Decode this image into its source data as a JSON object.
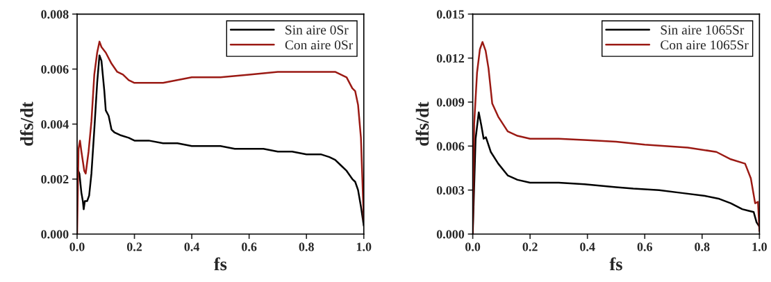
{
  "chart_data": [
    {
      "type": "line",
      "xlabel": "fs",
      "ylabel": "dfs/dt",
      "legend": "top right",
      "grid": false,
      "xlim": [
        0,
        1.0
      ],
      "xticks": [
        {
          "value": 0,
          "label": "0.0"
        },
        {
          "value": 0.2,
          "label": "0.2"
        },
        {
          "value": 0.4,
          "label": "0.4"
        },
        {
          "value": 0.6,
          "label": "0.6"
        },
        {
          "value": 0.8,
          "label": "0.8"
        },
        {
          "value": 1.0,
          "label": "1.0"
        }
      ],
      "ylim": [
        0,
        0.008
      ],
      "yticks": [
        {
          "value": 0,
          "label": "0.000"
        },
        {
          "value": 0.002,
          "label": "0.002"
        },
        {
          "value": 0.004,
          "label": "0.004"
        },
        {
          "value": 0.006,
          "label": "0.006"
        },
        {
          "value": 0.008,
          "label": "0.008"
        }
      ],
      "series": [
        {
          "name": "Sin aire 0Sr",
          "color": "#000000",
          "x": [
            0,
            0.008,
            0.015,
            0.02,
            0.023,
            0.027,
            0.035,
            0.042,
            0.05,
            0.06,
            0.07,
            0.078,
            0.085,
            0.095,
            0.1,
            0.11,
            0.12,
            0.13,
            0.15,
            0.18,
            0.2,
            0.25,
            0.3,
            0.35,
            0.4,
            0.45,
            0.5,
            0.55,
            0.6,
            0.65,
            0.7,
            0.75,
            0.8,
            0.85,
            0.88,
            0.9,
            0.92,
            0.94,
            0.96,
            0.97,
            0.98,
            0.99,
            1.0
          ],
          "values": [
            0.0024,
            0.0022,
            0.0015,
            0.0012,
            0.0009,
            0.0012,
            0.0012,
            0.0014,
            0.0022,
            0.0038,
            0.0055,
            0.0065,
            0.0063,
            0.0052,
            0.0045,
            0.0043,
            0.0038,
            0.0037,
            0.0036,
            0.0035,
            0.0034,
            0.0034,
            0.0033,
            0.0033,
            0.0032,
            0.0032,
            0.0032,
            0.0031,
            0.0031,
            0.0031,
            0.003,
            0.003,
            0.0029,
            0.0029,
            0.0028,
            0.0027,
            0.0025,
            0.0023,
            0.002,
            0.0019,
            0.0016,
            0.001,
            0.0003
          ]
        },
        {
          "name": "Con aire 0Sr",
          "color": "#9b1a14",
          "x": [
            0,
            0.005,
            0.01,
            0.015,
            0.025,
            0.03,
            0.04,
            0.05,
            0.06,
            0.07,
            0.078,
            0.085,
            0.1,
            0.12,
            0.14,
            0.16,
            0.18,
            0.2,
            0.25,
            0.3,
            0.35,
            0.4,
            0.5,
            0.6,
            0.7,
            0.8,
            0.85,
            0.9,
            0.92,
            0.94,
            0.96,
            0.97,
            0.98,
            0.99,
            1.0
          ],
          "values": [
            0,
            0.0031,
            0.0034,
            0.003,
            0.0023,
            0.0022,
            0.003,
            0.0041,
            0.0058,
            0.0066,
            0.007,
            0.0068,
            0.0066,
            0.0062,
            0.0059,
            0.0058,
            0.0056,
            0.0055,
            0.0055,
            0.0055,
            0.0056,
            0.0057,
            0.0057,
            0.0058,
            0.0059,
            0.0059,
            0.0059,
            0.0059,
            0.0058,
            0.0057,
            0.0053,
            0.0052,
            0.0047,
            0.0035,
            0.0005
          ]
        }
      ]
    },
    {
      "type": "line",
      "xlabel": "fs",
      "ylabel": "dfs/dt",
      "legend": "top right",
      "grid": false,
      "xlim": [
        0,
        1.0
      ],
      "xticks": [
        {
          "value": 0,
          "label": "0.0"
        },
        {
          "value": 0.2,
          "label": "0.2"
        },
        {
          "value": 0.4,
          "label": "0.4"
        },
        {
          "value": 0.6,
          "label": "0.6"
        },
        {
          "value": 0.8,
          "label": "0.8"
        },
        {
          "value": 1.0,
          "label": "1.0"
        }
      ],
      "ylim": [
        0,
        0.015
      ],
      "yticks": [
        {
          "value": 0,
          "label": "0.000"
        },
        {
          "value": 0.003,
          "label": "0.003"
        },
        {
          "value": 0.006,
          "label": "0.006"
        },
        {
          "value": 0.009,
          "label": "0.009"
        },
        {
          "value": 0.012,
          "label": "0.012"
        },
        {
          "value": 0.015,
          "label": "0.015"
        }
      ],
      "series": [
        {
          "name": "Sin aire 1065Sr",
          "color": "#000000",
          "x": [
            0,
            0.01,
            0.021,
            0.03,
            0.038,
            0.046,
            0.063,
            0.089,
            0.122,
            0.156,
            0.2,
            0.3,
            0.39,
            0.5,
            0.56,
            0.65,
            0.73,
            0.81,
            0.86,
            0.9,
            0.94,
            0.96,
            0.98,
            0.99,
            1.0
          ],
          "values": [
            0,
            0.0065,
            0.0083,
            0.0074,
            0.0065,
            0.0066,
            0.0056,
            0.0048,
            0.004,
            0.0037,
            0.0035,
            0.0035,
            0.0034,
            0.0032,
            0.0031,
            0.003,
            0.0028,
            0.0026,
            0.0024,
            0.0021,
            0.0017,
            0.0016,
            0.0015,
            0.0008,
            0.0005
          ]
        },
        {
          "name": "Con aire 1065Sr",
          "color": "#9b1a14",
          "x": [
            0,
            0.005,
            0.015,
            0.025,
            0.034,
            0.045,
            0.055,
            0.068,
            0.089,
            0.122,
            0.156,
            0.2,
            0.3,
            0.4,
            0.5,
            0.6,
            0.75,
            0.85,
            0.9,
            0.95,
            0.97,
            0.985,
            0.995,
            1.0
          ],
          "values": [
            0,
            0.0075,
            0.011,
            0.0126,
            0.0131,
            0.0125,
            0.0113,
            0.0089,
            0.008,
            0.007,
            0.0067,
            0.0065,
            0.0065,
            0.0064,
            0.0063,
            0.0061,
            0.0059,
            0.0056,
            0.0051,
            0.0048,
            0.0038,
            0.0021,
            0.0022,
            0.0002
          ]
        }
      ]
    }
  ]
}
